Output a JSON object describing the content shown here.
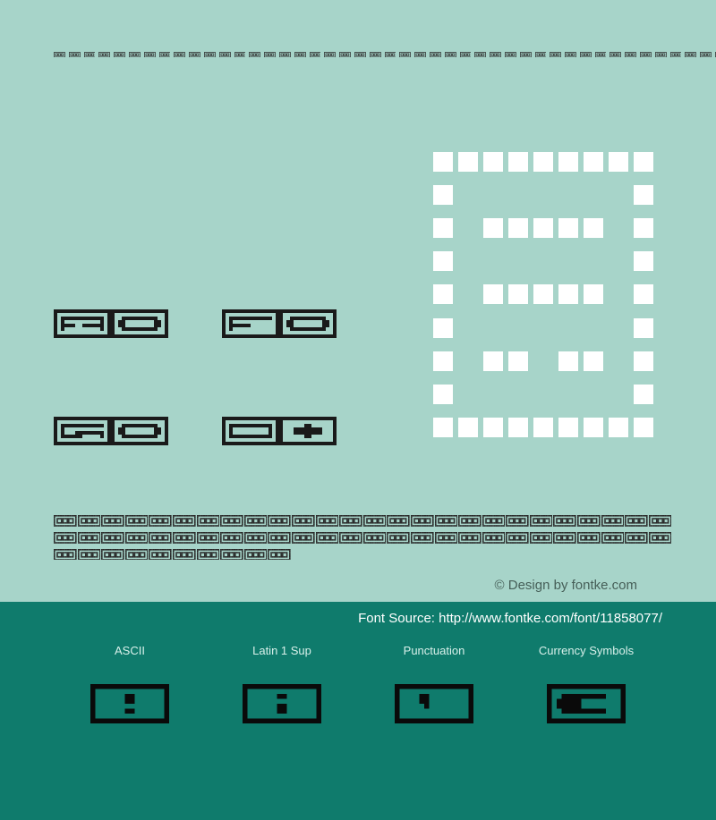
{
  "top_pattern": {
    "glyph_count": 52,
    "glyph_color": "#2a2a2a",
    "glyph_size": 12
  },
  "preview": {
    "glyphs": [
      {
        "row": 0,
        "col": 0,
        "letter": "A",
        "pattern": "a"
      },
      {
        "row": 0,
        "col": 1,
        "letter": "ring",
        "pattern": "ring"
      },
      {
        "row": 0,
        "col": 2,
        "letter": "F",
        "pattern": "f"
      },
      {
        "row": 0,
        "col": 3,
        "letter": "ring",
        "pattern": "ring"
      },
      {
        "row": 1,
        "col": 0,
        "letter": "G",
        "pattern": "g"
      },
      {
        "row": 1,
        "col": 1,
        "letter": "ring",
        "pattern": "ring"
      },
      {
        "row": 1,
        "col": 2,
        "letter": "O",
        "pattern": "o"
      },
      {
        "row": 1,
        "col": 3,
        "letter": "diamond",
        "pattern": "diamond"
      }
    ],
    "glyph_cell": 4,
    "glyph_grid": 16,
    "glyph_color_dark": "#1a1a1a"
  },
  "white_grid": {
    "rows": 9,
    "cols": 9,
    "cell_size": 22,
    "gap": 6,
    "color_on": "#ffffff",
    "pattern": [
      [
        1,
        1,
        1,
        1,
        1,
        1,
        1,
        1,
        1
      ],
      [
        1,
        0,
        0,
        0,
        0,
        0,
        0,
        0,
        1
      ],
      [
        1,
        0,
        1,
        1,
        1,
        1,
        1,
        0,
        1
      ],
      [
        1,
        0,
        0,
        0,
        0,
        0,
        0,
        0,
        1
      ],
      [
        1,
        0,
        1,
        1,
        1,
        1,
        1,
        0,
        1
      ],
      [
        1,
        0,
        0,
        0,
        0,
        0,
        0,
        0,
        1
      ],
      [
        1,
        0,
        1,
        1,
        0,
        1,
        1,
        0,
        1
      ],
      [
        1,
        0,
        0,
        0,
        0,
        0,
        0,
        0,
        1
      ],
      [
        1,
        1,
        1,
        1,
        1,
        1,
        1,
        1,
        1
      ]
    ]
  },
  "alphabet": {
    "row1": "ABCDEFGHIJKLMNOPQRSTUVWXYZ",
    "row2": "abcdefghijklmnopqrstuvwxyz",
    "row3": "0123456789",
    "glyph_color": "#2a2a2a",
    "glyph_size": 25
  },
  "credit_text": "© Design by fontke.com",
  "font_source_text": "Font Source: http://www.fontke.com/font/11858077/",
  "categories": [
    {
      "label": "ASCII",
      "glyph": "excl"
    },
    {
      "label": "Latin 1 Sup",
      "glyph": "inverted"
    },
    {
      "label": "Punctuation",
      "glyph": "quote"
    },
    {
      "label": "Currency Symbols",
      "glyph": "euro"
    }
  ],
  "dark_section_bg": "#0f7b6c",
  "page_bg": "#a7d4c9"
}
